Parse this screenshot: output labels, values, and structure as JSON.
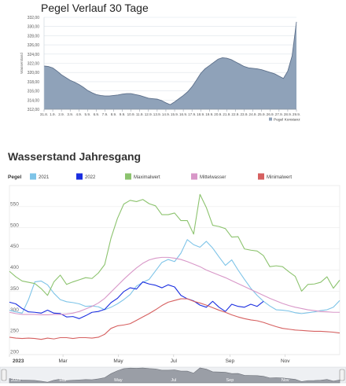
{
  "chart_data": [
    {
      "type": "area",
      "title": "Pegel Verlauf 30 Tage",
      "ylabel": "Wasserstand",
      "legend": {
        "label": "Pegel Konstanz",
        "placement": "bottom-right"
      },
      "ylim": [
        312,
        332
      ],
      "y_ticks": [
        "312,00",
        "314,00",
        "316,00",
        "318,00",
        "320,00",
        "322,00",
        "324,00",
        "326,00",
        "328,00",
        "330,00",
        "332,00"
      ],
      "x_ticks": [
        "31.8.",
        "1.9.",
        "2.9.",
        "3.9.",
        "4.9.",
        "5.9.",
        "6.9.",
        "7.9.",
        "8.9.",
        "9.9.",
        "10.9.",
        "11.9.",
        "12.9.",
        "13.9.",
        "14.9.",
        "15.9.",
        "16.9.",
        "17.9.",
        "18.9.",
        "19.9.",
        "20.9.",
        "21.9.",
        "22.9.",
        "23.9.",
        "24.9.",
        "25.9.",
        "26.9.",
        "27.9.",
        "28.9.",
        "29.9."
      ],
      "x": [
        0,
        0.5,
        1,
        1.5,
        2,
        2.5,
        3,
        3.5,
        4,
        4.5,
        5,
        5.5,
        6,
        6.5,
        7,
        7.5,
        8,
        8.5,
        9,
        9.5,
        10,
        10.5,
        11,
        11.5,
        12,
        12.5,
        13,
        13.5,
        14,
        14.5,
        15,
        15.5,
        16,
        16.5,
        17,
        17.5,
        18,
        18.5,
        19,
        19.5,
        20,
        20.5,
        21,
        21.5,
        22,
        22.5,
        23,
        23.5,
        24,
        24.5,
        25,
        25.5,
        26,
        26.5,
        27,
        27.5,
        28,
        28.5,
        29
      ],
      "values": [
        321.4,
        321.3,
        321.0,
        320.3,
        319.5,
        318.9,
        318.3,
        317.9,
        317.4,
        316.8,
        316.1,
        315.6,
        315.2,
        315.0,
        314.9,
        314.9,
        315.0,
        315.1,
        315.3,
        315.4,
        315.4,
        315.2,
        315.0,
        314.7,
        314.4,
        314.3,
        314.2,
        313.9,
        313.4,
        313.0,
        313.6,
        314.3,
        315.0,
        315.8,
        316.9,
        318.3,
        319.8,
        320.8,
        321.5,
        322.2,
        322.9,
        323.2,
        323.1,
        322.8,
        322.3,
        321.8,
        321.3,
        321.0,
        320.9,
        320.8,
        320.6,
        320.3,
        320.0,
        319.7,
        319.2,
        318.7,
        320.3,
        323.6,
        331.0
      ],
      "colors": {
        "fill": "#8fa2b9",
        "line": "#5c6f8a"
      }
    },
    {
      "type": "line",
      "title": "Wasserstand Jahresgang",
      "x_tick_labels": [
        "2023",
        "Mar",
        "May",
        "Jul",
        "Sep",
        "Nov"
      ],
      "navigator_labels": [
        "2023",
        "Mar",
        "May",
        "Jul",
        "Sep",
        "Nov"
      ],
      "legend_title": "Pegel",
      "legend_placement": "top",
      "ylim": [
        200,
        600
      ],
      "y_ticks": [
        200,
        250,
        300,
        350,
        400,
        450,
        500,
        550
      ],
      "grid": true,
      "x_note": "x values are days from January 1",
      "x": [
        0,
        7,
        14,
        21,
        28,
        35,
        42,
        49,
        56,
        63,
        70,
        77,
        84,
        91,
        98,
        105,
        112,
        119,
        126,
        133,
        140,
        147,
        154,
        161,
        168,
        175,
        182,
        189,
        196,
        203,
        210,
        217,
        224,
        231,
        238,
        245,
        252,
        259,
        266,
        273,
        280,
        287,
        294,
        301,
        308,
        315,
        322,
        329,
        336,
        343,
        350,
        357,
        364
      ],
      "series": [
        {
          "name": "2021",
          "color": "#7ec4e8",
          "values": [
            305,
            301,
            298,
            330,
            372,
            374,
            365,
            345,
            330,
            325,
            323,
            320,
            314,
            315,
            313,
            306,
            312,
            320,
            330,
            342,
            362,
            371,
            378,
            398,
            418,
            425,
            420,
            440,
            472,
            460,
            454,
            468,
            452,
            431,
            411,
            424,
            400,
            378,
            357,
            340,
            326,
            315,
            306,
            305,
            303,
            299,
            297,
            299,
            301,
            304,
            306,
            312,
            328
          ]
        },
        {
          "name": "2022",
          "color": "#1a2ee0",
          "values": [
            324,
            320,
            309,
            301,
            300,
            298,
            305,
            298,
            297,
            289,
            290,
            285,
            292,
            300,
            302,
            307,
            323,
            333,
            349,
            358,
            355,
            372,
            367,
            364,
            358,
            365,
            360,
            340,
            332,
            327,
            317,
            312,
            326,
            312,
            302,
            319,
            314,
            312,
            319,
            314,
            326,
            null,
            null,
            null,
            null,
            null,
            null,
            null,
            null,
            null,
            null,
            null,
            null
          ]
        },
        {
          "name": "Maximalwert",
          "color": "#8cc36e",
          "values": [
            397,
            384,
            374,
            371,
            368,
            356,
            340,
            372,
            388,
            366,
            372,
            377,
            382,
            380,
            393,
            413,
            476,
            522,
            556,
            565,
            562,
            567,
            557,
            552,
            531,
            531,
            535,
            517,
            517,
            485,
            579,
            548,
            506,
            503,
            498,
            478,
            479,
            450,
            447,
            445,
            434,
            408,
            410,
            408,
            396,
            385,
            350,
            366,
            367,
            371,
            384,
            357,
            376
          ]
        },
        {
          "name": "Mittelwasser",
          "color": "#d897c8",
          "values": [
            300,
            297,
            295,
            295,
            295,
            294,
            294,
            295,
            295,
            296,
            298,
            302,
            308,
            314,
            322,
            333,
            348,
            363,
            378,
            392,
            405,
            416,
            424,
            428,
            430,
            430,
            428,
            425,
            420,
            414,
            408,
            400,
            394,
            388,
            382,
            375,
            368,
            361,
            354,
            347,
            340,
            333,
            327,
            321,
            316,
            312,
            309,
            306,
            304,
            302,
            301,
            300,
            300
          ]
        },
        {
          "name": "Minimalwert",
          "color": "#d66060",
          "values": [
            241,
            239,
            238,
            239,
            238,
            236,
            239,
            237,
            240,
            240,
            238,
            240,
            240,
            239,
            241,
            248,
            262,
            268,
            270,
            273,
            281,
            289,
            297,
            306,
            316,
            324,
            328,
            332,
            332,
            326,
            322,
            317,
            311,
            305,
            300,
            294,
            289,
            285,
            282,
            280,
            276,
            271,
            266,
            262,
            260,
            258,
            257,
            256,
            255,
            255,
            254,
            253,
            251
          ]
        }
      ]
    }
  ]
}
